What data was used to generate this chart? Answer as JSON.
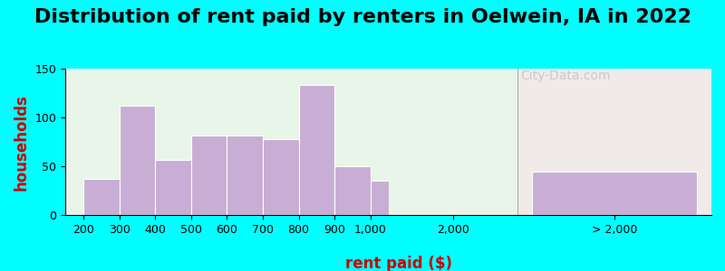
{
  "title": "Distribution of rent paid by renters in Oelwein, IA in 2022",
  "xlabel": "rent paid ($)",
  "ylabel": "households",
  "bar_color": "#c8aed4",
  "bar_edge_color": "#ffffff",
  "background_outer": "#00ffff",
  "background_inner_left": "#e8f5e8",
  "background_inner_right": "#f0ebe8",
  "watermark": "City-Data.com",
  "bins": [
    200,
    300,
    400,
    500,
    600,
    700,
    800,
    900,
    1000
  ],
  "values": [
    37,
    112,
    57,
    82,
    82,
    78,
    133,
    50,
    35
  ],
  "outlier_value": 45,
  "outlier_label": "> 2,000",
  "ylim": [
    0,
    150
  ],
  "yticks": [
    0,
    50,
    100,
    150
  ],
  "title_fontsize": 16,
  "axis_label_fontsize": 12,
  "tick_fontsize": 9
}
